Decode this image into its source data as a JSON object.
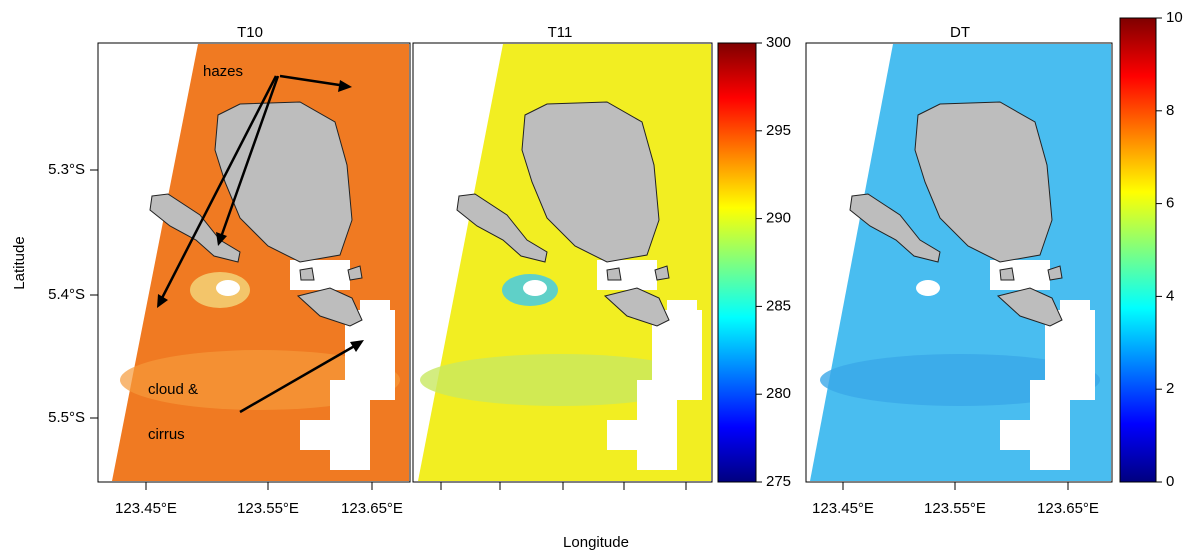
{
  "panels": [
    {
      "title": "T10"
    },
    {
      "title": "T11"
    },
    {
      "title": "DT"
    }
  ],
  "y_axis": {
    "label": "Latitude",
    "ticks": [
      "5.3°S",
      "5.4°S",
      "5.5°S"
    ]
  },
  "x_axis": {
    "label": "Longitude",
    "ticks": [
      "123.45°E",
      "123.55°E",
      "123.65°E"
    ]
  },
  "colorbars": [
    {
      "ticks": [
        275,
        280,
        285,
        290,
        295,
        300
      ]
    },
    {
      "ticks": [
        0,
        2,
        4,
        6,
        8,
        10
      ]
    }
  ],
  "annotations": {
    "hazes": "hazes",
    "cloud": "cloud &",
    "cirrus": "cirrus"
  }
}
